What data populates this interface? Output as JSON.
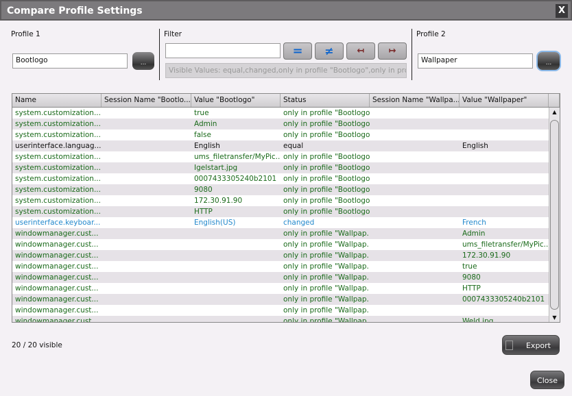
{
  "title": "Compare Profile Settings",
  "close_x": "X",
  "profile1": {
    "label": "Profile 1",
    "value": "Bootlogo",
    "browse": "..."
  },
  "profile2": {
    "label": "Profile 2",
    "value": "Wallpaper",
    "browse": "..."
  },
  "filter": {
    "label": "Filter",
    "value": "",
    "buttons": {
      "equal": "=",
      "changed": "≠",
      "only1": "↤",
      "only2": "↦"
    },
    "visible_values": "Visible Values: equal,changed,only in profile \"Bootlogo\",only in profile \"Wallpaper\""
  },
  "colors": {
    "only": "#1a6a1a",
    "changed": "#2288cc",
    "equal": "#111111"
  },
  "table": {
    "columns": [
      "Name",
      "Session Name \"Bootlo...",
      "Value \"Bootlogo\"",
      "Status",
      "Session Name \"Wallpa...",
      "Value \"Wallpaper\""
    ],
    "rows": [
      [
        "system.customization....",
        "",
        "true",
        "only in profile \"Bootlogo\"",
        "",
        "",
        "g"
      ],
      [
        "system.customization....",
        "",
        "Admin",
        "only in profile \"Bootlogo\"",
        "",
        "",
        "g"
      ],
      [
        "system.customization....",
        "",
        "false",
        "only in profile \"Bootlogo\"",
        "",
        "",
        "g"
      ],
      [
        "userinterface.languag...",
        "",
        "English",
        "equal",
        "",
        "English",
        "k"
      ],
      [
        "system.customization....",
        "",
        "ums_filetransfer/MyPic...",
        "only in profile \"Bootlogo\"",
        "",
        "",
        "g"
      ],
      [
        "system.customization....",
        "",
        "Igelstart.jpg",
        "only in profile \"Bootlogo\"",
        "",
        "",
        "g"
      ],
      [
        "system.customization....",
        "",
        "0007433305240b2101",
        "only in profile \"Bootlogo\"",
        "",
        "",
        "g"
      ],
      [
        "system.customization....",
        "",
        "9080",
        "only in profile \"Bootlogo\"",
        "",
        "",
        "g"
      ],
      [
        "system.customization....",
        "",
        "172.30.91.90",
        "only in profile \"Bootlogo\"",
        "",
        "",
        "g"
      ],
      [
        "system.customization....",
        "",
        "HTTP",
        "only in profile \"Bootlogo\"",
        "",
        "",
        "g"
      ],
      [
        "userinterface.keyboar...",
        "",
        "English(US)",
        "changed",
        "",
        "French",
        "b"
      ],
      [
        "windowmanager.cust...",
        "",
        "",
        "only in profile \"Wallpap...",
        "",
        "Admin",
        "g"
      ],
      [
        "windowmanager.cust...",
        "",
        "",
        "only in profile \"Wallpap...",
        "",
        "ums_filetransfer/MyPic...",
        "g"
      ],
      [
        "windowmanager.cust...",
        "",
        "",
        "only in profile \"Wallpap...",
        "",
        "172.30.91.90",
        "g"
      ],
      [
        "windowmanager.cust...",
        "",
        "",
        "only in profile \"Wallpap...",
        "",
        "true",
        "g"
      ],
      [
        "windowmanager.cust...",
        "",
        "",
        "only in profile \"Wallpap...",
        "",
        "9080",
        "g"
      ],
      [
        "windowmanager.cust...",
        "",
        "",
        "only in profile \"Wallpap...",
        "",
        "HTTP",
        "g"
      ],
      [
        "windowmanager.cust...",
        "",
        "",
        "only in profile \"Wallpap...",
        "",
        "0007433305240b2101",
        "g"
      ],
      [
        "windowmanager.cust...",
        "",
        "",
        "only in profile \"Wallpap...",
        "",
        "",
        "g"
      ],
      [
        "windowmanager.cust...",
        "",
        "",
        "only in profile \"Wallpap...",
        "",
        "Weld.jpg",
        "g"
      ]
    ]
  },
  "visible_count": "20 / 20 visible",
  "export_label": "Export",
  "close_label": "Close"
}
